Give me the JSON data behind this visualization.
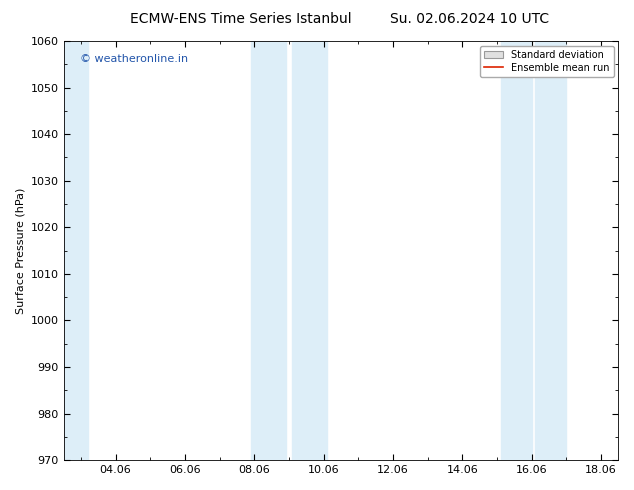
{
  "title_left": "ECMW-ENS Time Series Istanbul",
  "title_right": "Su. 02.06.2024 10 UTC",
  "ylabel": "Surface Pressure (hPa)",
  "ylim": [
    970,
    1060
  ],
  "yticks": [
    970,
    980,
    990,
    1000,
    1010,
    1020,
    1030,
    1040,
    1050,
    1060
  ],
  "xlim_start": 2.5,
  "xlim_end": 18.5,
  "xtick_positions": [
    4,
    6,
    8,
    10,
    12,
    14,
    16,
    18
  ],
  "xtick_labels": [
    "04.06",
    "06.06",
    "08.06",
    "10.06",
    "12.06",
    "14.06",
    "16.06",
    "18.06"
  ],
  "shaded_bands": [
    {
      "x_start": 2.5,
      "x_end": 3.2,
      "color": "#ddeef8"
    },
    {
      "x_start": 7.9,
      "x_end": 8.9,
      "color": "#ddeef8"
    },
    {
      "x_start": 9.1,
      "x_end": 10.1,
      "color": "#ddeef8"
    },
    {
      "x_start": 15.1,
      "x_end": 16.0,
      "color": "#ddeef8"
    },
    {
      "x_start": 16.1,
      "x_end": 17.0,
      "color": "#ddeef8"
    }
  ],
  "watermark_text": "© weatheronline.in",
  "watermark_color": "#2255aa",
  "legend_std_label": "Standard deviation",
  "legend_mean_label": "Ensemble mean run",
  "legend_mean_color": "#dd2200",
  "bg_color": "#ffffff",
  "plot_bg_color": "#ffffff",
  "title_fontsize": 10,
  "tick_fontsize": 8,
  "ylabel_fontsize": 8,
  "watermark_fontsize": 8
}
